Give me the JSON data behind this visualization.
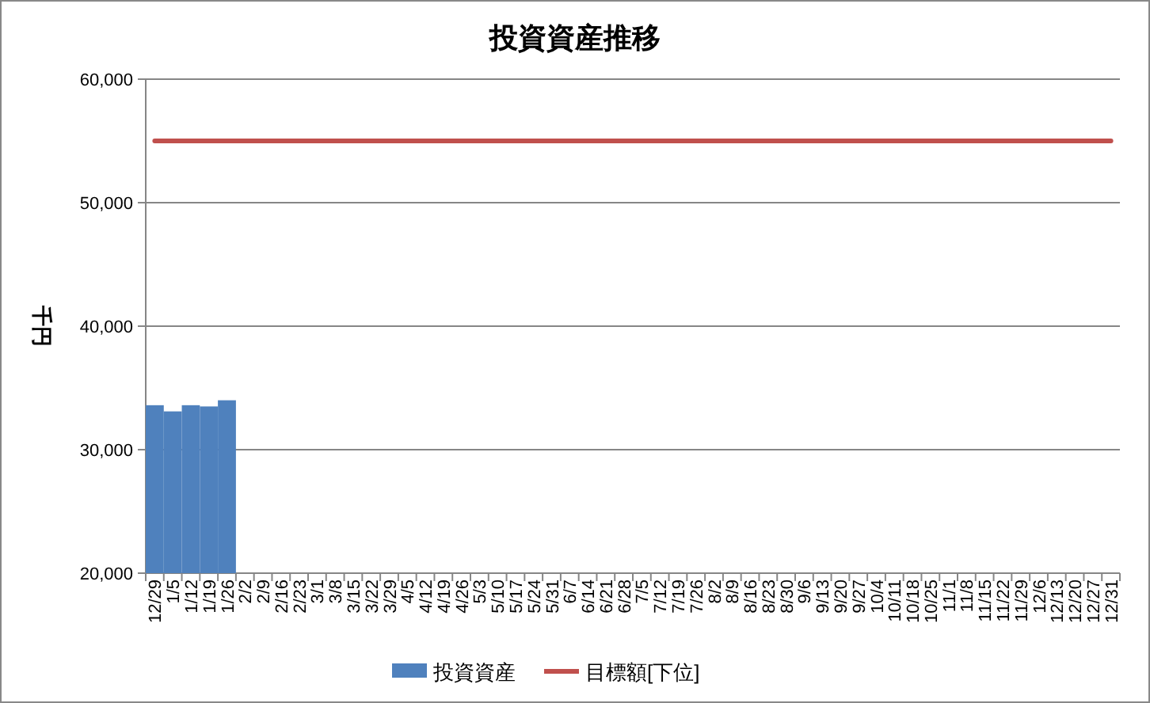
{
  "chart_data": {
    "type": "bar",
    "title": "投資資産推移",
    "ylabel": "千円",
    "categories": [
      "12/29",
      "1/5",
      "1/12",
      "1/19",
      "1/26",
      "2/2",
      "2/9",
      "2/16",
      "2/23",
      "3/1",
      "3/8",
      "3/15",
      "3/22",
      "3/29",
      "4/5",
      "4/12",
      "4/19",
      "4/26",
      "5/3",
      "5/10",
      "5/17",
      "5/24",
      "5/31",
      "6/7",
      "6/14",
      "6/21",
      "6/28",
      "7/5",
      "7/12",
      "7/19",
      "7/26",
      "8/2",
      "8/9",
      "8/16",
      "8/23",
      "8/30",
      "9/6",
      "9/13",
      "9/20",
      "9/27",
      "10/4",
      "10/11",
      "10/18",
      "10/25",
      "11/1",
      "11/8",
      "11/15",
      "11/22",
      "11/29",
      "12/6",
      "12/13",
      "12/20",
      "12/27",
      "12/31"
    ],
    "series": [
      {
        "name": "投資資産",
        "color": "#4f81bd",
        "values": [
          33600,
          33100,
          33600,
          33500,
          34000,
          null,
          null,
          null,
          null,
          null,
          null,
          null,
          null,
          null,
          null,
          null,
          null,
          null,
          null,
          null,
          null,
          null,
          null,
          null,
          null,
          null,
          null,
          null,
          null,
          null,
          null,
          null,
          null,
          null,
          null,
          null,
          null,
          null,
          null,
          null,
          null,
          null,
          null,
          null,
          null,
          null,
          null,
          null,
          null,
          null,
          null,
          null,
          null,
          null
        ]
      },
      {
        "name": "目標額[下位]",
        "type": "line",
        "color": "#c0504d",
        "values": [
          55000,
          55000,
          55000,
          55000,
          55000,
          55000,
          55000,
          55000,
          55000,
          55000,
          55000,
          55000,
          55000,
          55000,
          55000,
          55000,
          55000,
          55000,
          55000,
          55000,
          55000,
          55000,
          55000,
          55000,
          55000,
          55000,
          55000,
          55000,
          55000,
          55000,
          55000,
          55000,
          55000,
          55000,
          55000,
          55000,
          55000,
          55000,
          55000,
          55000,
          55000,
          55000,
          55000,
          55000,
          55000,
          55000,
          55000,
          55000,
          55000,
          55000,
          55000,
          55000,
          55000,
          55000
        ]
      }
    ],
    "ylim": [
      20000,
      60000
    ],
    "yticks": [
      {
        "value": 20000,
        "label": "20,000"
      },
      {
        "value": 30000,
        "label": "30,000"
      },
      {
        "value": 40000,
        "label": "40,000"
      },
      {
        "value": 50000,
        "label": "50,000"
      },
      {
        "value": 60000,
        "label": "60,000"
      }
    ],
    "grid": "y",
    "legend": "bottom"
  }
}
